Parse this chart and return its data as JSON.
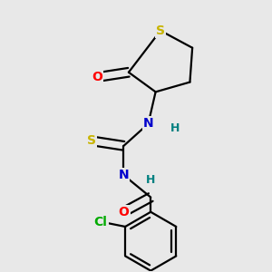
{
  "bg_color": "#e8e8e8",
  "atom_colors": {
    "S": "#c8b400",
    "O": "#ff0000",
    "N": "#0000cc",
    "Cl": "#00aa00",
    "C": "#000000",
    "H": "#008080"
  },
  "bond_color": "#000000",
  "bond_width": 1.6
}
